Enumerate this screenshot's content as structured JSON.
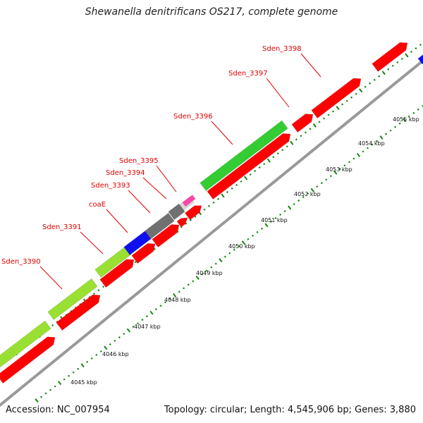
{
  "title": "Shewanella denitrificans OS217, complete genome",
  "footer": {
    "accession": "Accession: NC_007954",
    "stats": "Topology: circular; Length: 4,545,906 bp; Genes: 3,880"
  },
  "colors": {
    "backbone": "#999999",
    "red": "#ff0000",
    "green": "#33cc33",
    "lightgreen": "#99e033",
    "blue": "#1010ee",
    "gray": "#707070",
    "pink": "#ff44aa",
    "label": "#e00000",
    "tick": "#118811"
  },
  "ticks": [
    "4045 kbp",
    "4046 kbp",
    "4047 kbp",
    "4048 kbp",
    "4049 kbp",
    "4050 kbp",
    "4051 kbp",
    "4052 kbp",
    "4053 kbp",
    "4054 kbp",
    "4055 kbp"
  ],
  "genes": [
    {
      "name": "Sden_3390"
    },
    {
      "name": "Sden_3391"
    },
    {
      "name": "coaE"
    },
    {
      "name": "Sden_3393"
    },
    {
      "name": "Sden_3394"
    },
    {
      "name": "Sden_3395"
    },
    {
      "name": "Sden_3396"
    },
    {
      "name": "Sden_3397"
    },
    {
      "name": "Sden_3398"
    }
  ]
}
